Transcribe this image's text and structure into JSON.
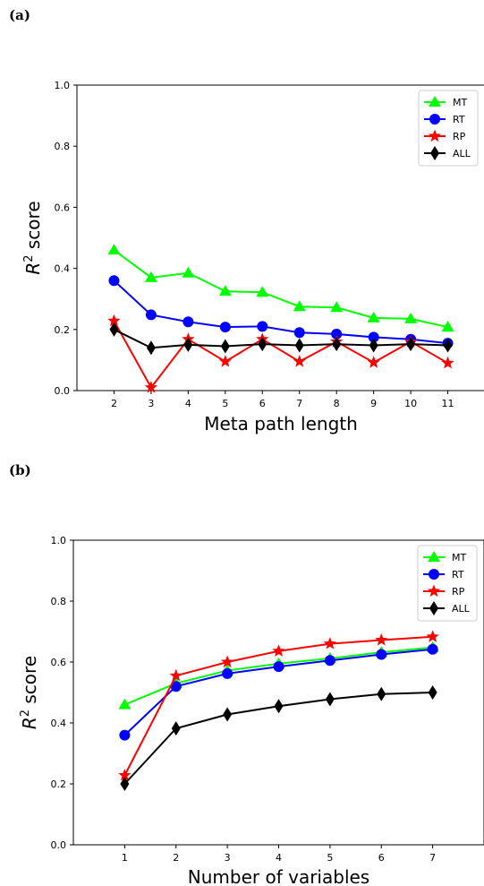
{
  "chart_data": [
    {
      "panel": "(a)",
      "type": "line",
      "xlabel": "Meta path length",
      "ylabel_base": "R",
      "ylabel_sup": "2",
      "ylabel_rest": " score",
      "x": [
        2,
        3,
        4,
        5,
        6,
        7,
        8,
        9,
        10,
        11
      ],
      "xlim": [
        1,
        12
      ],
      "ylim": [
        0.0,
        1.0
      ],
      "yticks": [
        "0.0",
        "0.2",
        "0.4",
        "0.6",
        "0.8",
        "1.0"
      ],
      "legend_position": "top-right",
      "grid": false,
      "series": [
        {
          "name": "MT",
          "color": "#00ff00",
          "marker": "triangle",
          "values": [
            0.46,
            0.37,
            0.385,
            0.325,
            0.322,
            0.275,
            0.272,
            0.238,
            0.235,
            0.208
          ]
        },
        {
          "name": "RT",
          "color": "#0000ff",
          "marker": "circle",
          "values": [
            0.36,
            0.248,
            0.225,
            0.208,
            0.21,
            0.19,
            0.185,
            0.175,
            0.168,
            0.155
          ]
        },
        {
          "name": "RP",
          "color": "#ff0000",
          "marker": "star",
          "values": [
            0.228,
            0.01,
            0.168,
            0.095,
            0.168,
            0.095,
            0.16,
            0.092,
            0.16,
            0.09
          ]
        },
        {
          "name": "ALL",
          "color": "#000000",
          "marker": "diamond",
          "values": [
            0.2,
            0.14,
            0.15,
            0.145,
            0.152,
            0.148,
            0.152,
            0.148,
            0.152,
            0.148
          ]
        }
      ]
    },
    {
      "panel": "(b)",
      "type": "line",
      "xlabel": "Number of variables",
      "ylabel_base": "R",
      "ylabel_sup": "2",
      "ylabel_rest": " score",
      "x": [
        1,
        2,
        3,
        4,
        5,
        6,
        7
      ],
      "xlim": [
        0,
        8
      ],
      "ylim": [
        0.0,
        1.0
      ],
      "yticks": [
        "0.0",
        "0.2",
        "0.4",
        "0.6",
        "0.8",
        "1.0"
      ],
      "legend_position": "top-right",
      "grid": false,
      "series": [
        {
          "name": "MT",
          "color": "#00ff00",
          "marker": "triangle",
          "values": [
            0.46,
            0.53,
            0.572,
            0.595,
            0.612,
            0.632,
            0.648
          ]
        },
        {
          "name": "RT",
          "color": "#0000ff",
          "marker": "circle",
          "values": [
            0.36,
            0.52,
            0.562,
            0.585,
            0.605,
            0.625,
            0.642
          ]
        },
        {
          "name": "RP",
          "color": "#ff0000",
          "marker": "star",
          "values": [
            0.228,
            0.555,
            0.6,
            0.636,
            0.66,
            0.672,
            0.683
          ]
        },
        {
          "name": "ALL",
          "color": "#000000",
          "marker": "diamond",
          "values": [
            0.2,
            0.382,
            0.428,
            0.455,
            0.478,
            0.495,
            0.5
          ]
        }
      ]
    }
  ]
}
